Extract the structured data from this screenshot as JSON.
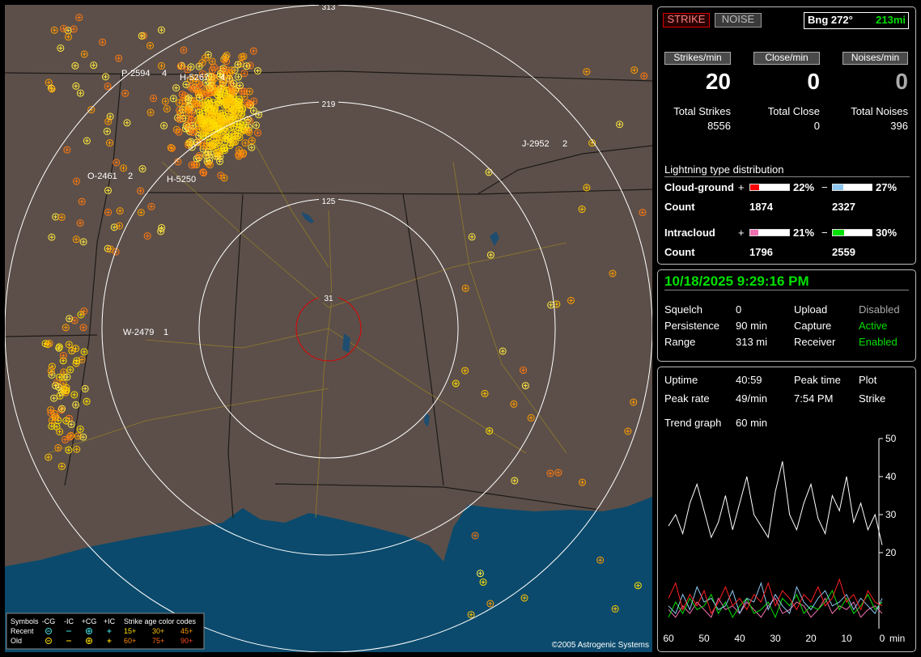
{
  "map": {
    "ring_labels": [
      "313",
      "219",
      "125",
      "31"
    ],
    "stations": [
      {
        "id": "P-2594",
        "count": "4"
      },
      {
        "id": "H-5267",
        "count": "4"
      },
      {
        "id": "J-2952",
        "count": "2"
      },
      {
        "id": "O-2461",
        "count": "2"
      },
      {
        "id": "H-5250"
      },
      {
        "id": "W-2479",
        "count": "1"
      }
    ],
    "legend": {
      "symbols": "Symbols",
      "types": [
        "-CG",
        "-IC",
        "+CG",
        "+IC"
      ],
      "age_title": "Strike age color codes",
      "rows": [
        "Recent",
        "Old"
      ],
      "ages": [
        [
          "15+",
          "30+",
          "45+"
        ],
        [
          "60+",
          "75+",
          "90+"
        ]
      ]
    },
    "copyright": "©2005 Astrogenic Systems"
  },
  "status": {
    "mode_buttons": [
      "STRIKE",
      "NOISE"
    ],
    "bearing": "Bng 272°",
    "distance": "213mi",
    "rates": [
      {
        "label": "Strikes/min",
        "value": 20
      },
      {
        "label": "Close/min",
        "value": 0
      },
      {
        "label": "Noises/min",
        "value": 0
      }
    ],
    "totals": [
      {
        "label": "Total Strikes",
        "value": 8556
      },
      {
        "label": "Total Close",
        "value": 0
      },
      {
        "label": "Total Noises",
        "value": 396
      }
    ],
    "distribution": {
      "title": "Lightning type distribution",
      "count_label": "Count",
      "plus_sign": "+",
      "minus_sign": "−",
      "types": [
        {
          "name": "Cloud-ground",
          "plus": {
            "value": 22,
            "label": "22%",
            "color": "#ff0000"
          },
          "minus": {
            "value": 27,
            "label": "27%",
            "color": "#8ec8f0"
          },
          "counts": [
            1874,
            2327
          ]
        },
        {
          "name": "Intracloud",
          "plus": {
            "value": 21,
            "label": "21%",
            "color": "#f070b0"
          },
          "minus": {
            "value": 30,
            "label": "30%",
            "color": "#00e000"
          },
          "counts": [
            1796,
            2559
          ]
        }
      ]
    }
  },
  "clock": "10/18/2025 9:29:16 PM",
  "settings": [
    [
      "Squelch",
      "0",
      "Upload",
      "Disabled"
    ],
    [
      "Persistence",
      "90 min",
      "Capture",
      "Active"
    ],
    [
      "Range",
      "313 mi",
      "Receiver",
      "Enabled"
    ]
  ],
  "stats": [
    [
      "Uptime",
      "40:59",
      "Peak time",
      "Plot"
    ],
    [
      "Peak rate",
      "49/min",
      "7:54 PM",
      "Strike"
    ],
    [
      "Trend graph",
      "60 min"
    ]
  ],
  "trend_chart": {
    "type": "line",
    "x": [
      60,
      58,
      56,
      54,
      52,
      50,
      48,
      46,
      44,
      42,
      40,
      38,
      36,
      34,
      32,
      30,
      28,
      26,
      24,
      22,
      20,
      18,
      16,
      14,
      12,
      10,
      8,
      6,
      4,
      2,
      0
    ],
    "xlim": [
      60,
      0
    ],
    "xticks": [
      60,
      50,
      40,
      30,
      20,
      10,
      0
    ],
    "x_label": "min",
    "ylim": [
      0,
      50
    ],
    "yticks": [
      20,
      30,
      40,
      50
    ],
    "series": [
      {
        "color": "#ffffff",
        "values": [
          27,
          30,
          25,
          33,
          38,
          31,
          24,
          28,
          35,
          26,
          33,
          40,
          30,
          27,
          24,
          36,
          44,
          30,
          26,
          33,
          38,
          29,
          25,
          35,
          31,
          40,
          28,
          33,
          26,
          30,
          22
        ]
      },
      {
        "color": "#ff2020",
        "values": [
          8,
          12,
          5,
          9,
          6,
          10,
          4,
          7,
          11,
          6,
          8,
          5,
          9,
          7,
          12,
          6,
          10,
          8,
          5,
          9,
          7,
          11,
          6,
          8,
          13,
          7,
          9,
          5,
          10,
          7,
          6
        ]
      },
      {
        "color": "#8ec8f0",
        "values": [
          6,
          4,
          9,
          5,
          11,
          7,
          8,
          5,
          6,
          10,
          4,
          8,
          7,
          12,
          5,
          9,
          6,
          4,
          11,
          7,
          5,
          8,
          10,
          6,
          7,
          9,
          5,
          8,
          6,
          4,
          8
        ]
      },
      {
        "color": "#00e000",
        "values": [
          3,
          7,
          4,
          8,
          5,
          6,
          9,
          4,
          7,
          3,
          6,
          8,
          4,
          5,
          7,
          3,
          8,
          6,
          9,
          4,
          6,
          5,
          7,
          10,
          5,
          8,
          4,
          6,
          9,
          5,
          7
        ]
      },
      {
        "color": "#f070b0",
        "values": [
          5,
          3,
          6,
          4,
          7,
          5,
          3,
          8,
          5,
          6,
          4,
          7,
          5,
          3,
          6,
          8,
          4,
          5,
          7,
          6,
          3,
          5,
          8,
          4,
          6,
          5,
          7,
          3,
          5,
          6,
          4
        ]
      }
    ]
  }
}
